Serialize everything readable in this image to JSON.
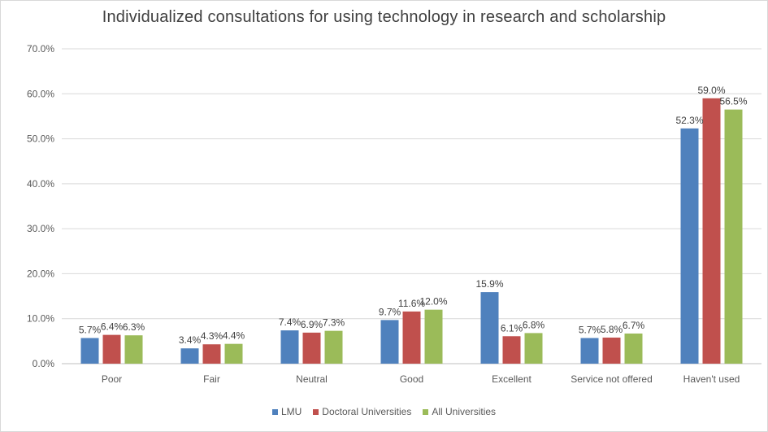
{
  "chart_data": {
    "type": "bar",
    "title": "Individualized consultations for using technology in research and scholarship",
    "categories": [
      "Poor",
      "Fair",
      "Neutral",
      "Good",
      "Excellent",
      "Service not offered",
      "Haven't used"
    ],
    "ylim": [
      0,
      70
    ],
    "y_ticks": [
      "0.0%",
      "10.0%",
      "20.0%",
      "30.0%",
      "40.0%",
      "50.0%",
      "60.0%",
      "70.0%"
    ],
    "grid": true,
    "legend_position": "bottom",
    "series": [
      {
        "name": "LMU",
        "color": "#4f81bd",
        "values": [
          5.7,
          3.4,
          7.4,
          9.7,
          15.9,
          5.7,
          52.3
        ],
        "labels": [
          "5.7%",
          "3.4%",
          "7.4%",
          "9.7%",
          "15.9%",
          "5.7%",
          "52.3%"
        ]
      },
      {
        "name": "Doctoral Universities",
        "color": "#c0504d",
        "values": [
          6.4,
          4.3,
          6.9,
          11.6,
          6.1,
          5.8,
          59.0
        ],
        "labels": [
          "6.4%",
          "4.3%",
          "6.9%",
          "11.6%",
          "6.1%",
          "5.8%",
          "59.0%"
        ]
      },
      {
        "name": "All Universities",
        "color": "#9bbb59",
        "values": [
          6.3,
          4.4,
          7.3,
          12.0,
          6.8,
          6.7,
          56.5
        ],
        "labels": [
          "6.3%",
          "4.4%",
          "7.3%",
          "12.0%",
          "6.8%",
          "6.7%",
          "56.5%"
        ]
      }
    ]
  }
}
